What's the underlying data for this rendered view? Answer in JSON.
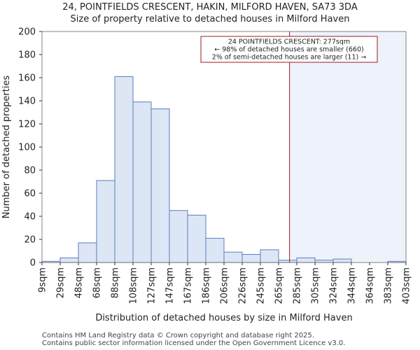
{
  "chart_data": {
    "type": "bar",
    "title": "24, POINTFIELDS CRESCENT, HAKIN, MILFORD HAVEN, SA73 3DA",
    "subtitle": "Size of property relative to detached houses in Milford Haven",
    "xlabel": "Distribution of detached houses by size in Milford Haven",
    "ylabel": "Number of detached properties",
    "ylim": [
      0,
      200
    ],
    "yticks": [
      0,
      20,
      40,
      60,
      80,
      100,
      120,
      140,
      160,
      180,
      200
    ],
    "tick_labels": [
      "9sqm",
      "29sqm",
      "48sqm",
      "68sqm",
      "88sqm",
      "108sqm",
      "127sqm",
      "147sqm",
      "167sqm",
      "186sqm",
      "206sqm",
      "226sqm",
      "245sqm",
      "265sqm",
      "285sqm",
      "305sqm",
      "324sqm",
      "344sqm",
      "364sqm",
      "383sqm",
      "403sqm"
    ],
    "values": [
      1,
      4,
      17,
      71,
      161,
      139,
      133,
      45,
      41,
      21,
      9,
      7,
      11,
      2,
      4,
      2,
      3,
      0,
      0,
      1
    ],
    "marker_bin_position": 13.6,
    "annotation": {
      "line1": "24 POINTFIELDS CRESCENT: 277sqm",
      "line2": "← 98% of detached houses are smaller (660)",
      "line3": "2% of semi-detached houses are larger (11) →"
    },
    "colors": {
      "bar_fill": "#dce6f5",
      "bar_edge": "#5b7fbf",
      "marker": "#9b1c1c",
      "highlight": "#eef2fb",
      "axis": "#666666"
    }
  },
  "footer": {
    "line1": "Contains HM Land Registry data © Crown copyright and database right 2025.",
    "line2": "Contains public sector information licensed under the Open Government Licence v3.0."
  }
}
